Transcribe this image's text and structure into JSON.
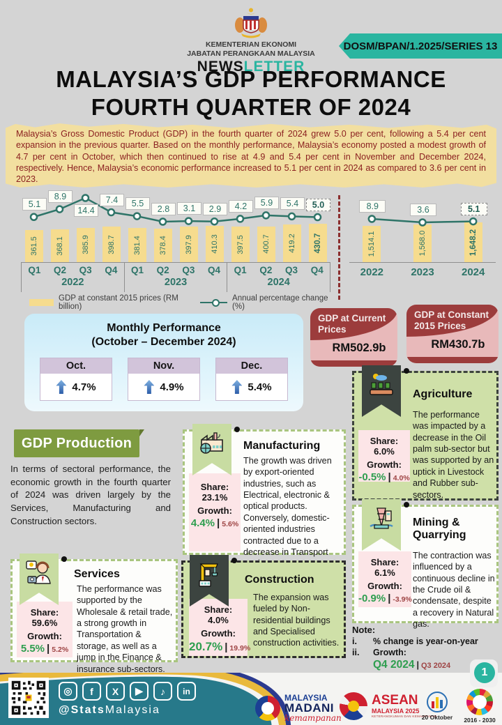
{
  "header": {
    "ministry_line1": "KEMENTERIAN EKONOMI",
    "ministry_line2": "JABATAN PERANGKAAN MALAYSIA",
    "newsletter_part1": "NEWS",
    "newsletter_part2": "LETTER",
    "series_badge": "DOSM/BPAN/1.2025/SERIES 13"
  },
  "title": {
    "line1": "MALAYSIA’S GDP PERFORMANCE",
    "line2": "FOURTH QUARTER OF 2024"
  },
  "intro": "Malaysia’s Gross Domestic Product (GDP) in the fourth quarter of 2024 grew 5.0 per cent, following a 5.4 per cent expansion in the previous quarter. Based on the monthly performance, Malaysia’s economy posted a modest growth of 4.7 per cent in October, which then continued to rise at 4.9 and 5.4 per cent in November and December 2024, respectively. Hence, Malaysia’s economic performance increased to 5.1 per cent in 2024 as compared to 3.6 per cent in 2023.",
  "chart_data": [
    {
      "type": "bar",
      "title": "Quarterly GDP",
      "categories": [
        "Q1",
        "Q2",
        "Q3",
        "Q4",
        "Q1",
        "Q2",
        "Q3",
        "Q4",
        "Q1",
        "Q2",
        "Q3",
        "Q4"
      ],
      "year_groups": [
        "2022",
        "2023",
        "2024"
      ],
      "series": [
        {
          "name": "GDP at constant 2015 prices (RM billion)",
          "kind": "bar",
          "values": [
            361.5,
            368.1,
            385.9,
            398.7,
            381.4,
            378.4,
            397.9,
            410.3,
            397.5,
            400.7,
            419.2,
            430.7
          ]
        },
        {
          "name": "Annual percentage change (%)",
          "kind": "line",
          "values": [
            5.1,
            8.9,
            14.4,
            7.4,
            5.5,
            2.8,
            3.1,
            2.9,
            4.2,
            5.9,
            5.4,
            5.0
          ]
        }
      ],
      "highlight_last": true,
      "legend_position": "bottom",
      "grid": false
    },
    {
      "type": "bar",
      "title": "Annual GDP",
      "categories": [
        "2022",
        "2023",
        "2024"
      ],
      "series": [
        {
          "name": "GDP at constant 2015 prices (RM billion)",
          "kind": "bar",
          "values": [
            1514.1,
            1568.0,
            1648.2
          ],
          "values_text": [
            "1,514.1",
            "1,568.0",
            "1,648.2"
          ]
        },
        {
          "name": "Annual percentage change (%)",
          "kind": "line",
          "values": [
            8.9,
            3.6,
            5.1
          ]
        }
      ],
      "highlight_last": true,
      "grid": false
    }
  ],
  "monthly": {
    "title_line1": "Monthly Performance",
    "title_line2": "(October – December 2024)",
    "months": [
      {
        "label": "Oct.",
        "value": "4.7%"
      },
      {
        "label": "Nov.",
        "value": "4.9%"
      },
      {
        "label": "Dec.",
        "value": "5.4%"
      }
    ]
  },
  "gdp_cards": [
    {
      "title": "GDP at Current Prices",
      "value": "RM502.9b"
    },
    {
      "title": "GDP at Constant 2015 Prices",
      "value": "RM430.7b"
    }
  ],
  "production": {
    "badge": "GDP Production",
    "text": "In terms of sectoral performance, the economic growth in the fourth quarter of 2024 was driven largely by the Services, Manufacturing and Construction sectors."
  },
  "sectors_ui": {
    "share_label": "Share:",
    "growth_label": "Growth:",
    "separator": "|"
  },
  "sectors": [
    {
      "name": "Manufacturing",
      "share": "23.1%",
      "growth_current": "4.4%",
      "growth_previous": "5.6%",
      "description": "The growth was driven by export-oriented industries, such as Electrical, electronic & optical products. Conversely, domestic-oriented industries contracted due to a decrease in Transport equipment."
    },
    {
      "name": "Agriculture",
      "share": "6.0%",
      "growth_current": "-0.5%",
      "growth_previous": "4.0%",
      "description": "The performance was impacted by a decrease in the Oil palm sub-sector but was supported by an uptick in Livestock and Rubber sub-sectors."
    },
    {
      "name": "Services",
      "share": "59.6%",
      "growth_current": "5.5%",
      "growth_previous": "5.2%",
      "description": "The performance was supported by the Wholesale & retail trade, a strong growth in Transportation & storage, as well as a jump in the Finance & insurance sub-sectors."
    },
    {
      "name": "Construction",
      "share": "4.0%",
      "growth_current": "20.7%",
      "growth_previous": "19.9%",
      "description": "The expansion was fueled by Non-residential buildings and Specialised construction activities."
    },
    {
      "name": "Mining & Quarrying",
      "share": "6.1%",
      "growth_current": "-0.9%",
      "growth_previous": "-3.9%",
      "description": "The contraction was influenced by a continuous decline in the Crude oil & condensate, despite a recovery in Natural gas."
    }
  ],
  "note": {
    "title": "Note:",
    "item1_num": "i.",
    "item1": "% change is year-on-year",
    "item2_num": "ii.",
    "item2": "Growth:",
    "growth_q4": "Q4 2024",
    "separator": "|",
    "growth_q3": "Q3 2024"
  },
  "footer": {
    "handle_bold": "@Stats",
    "handle_rest": "Malaysia",
    "social": [
      {
        "name": "instagram",
        "glyph": "◎"
      },
      {
        "name": "facebook",
        "glyph": "f"
      },
      {
        "name": "x",
        "glyph": "X"
      },
      {
        "name": "youtube",
        "glyph": "▶"
      },
      {
        "name": "tiktok",
        "glyph": "♪"
      },
      {
        "name": "linkedin",
        "glyph": "in"
      }
    ],
    "logos": {
      "madani_line1": "MALAYSIA",
      "madani_line2": "MADANI",
      "madani_line3": "kemampanan",
      "asean_line1": "ASEAN",
      "asean_line2": "MALAYSIA 2025",
      "asean_line3": "KETERANGKUMAN DAN KEMAMPANAN",
      "oktober": "20 Oktober",
      "sdg": "2016 - 2030"
    },
    "page_number": "1"
  },
  "colors": {
    "teal_accent": "#2ab5a0",
    "bar_yellow": "#f6dc8e",
    "line_teal": "#2e7468",
    "intro_red": "#8b2020",
    "intro_bg": "#f2dfa0",
    "olive_badge": "#7e9b40",
    "growth_green": "#2e9e4f",
    "growth_prev_red": "#9e4444",
    "dark_red_card": "#9c3c3c",
    "footer_teal": "#27798a",
    "footer_yellow": "#e9b93c",
    "footer_navy": "#2b3a8f"
  }
}
